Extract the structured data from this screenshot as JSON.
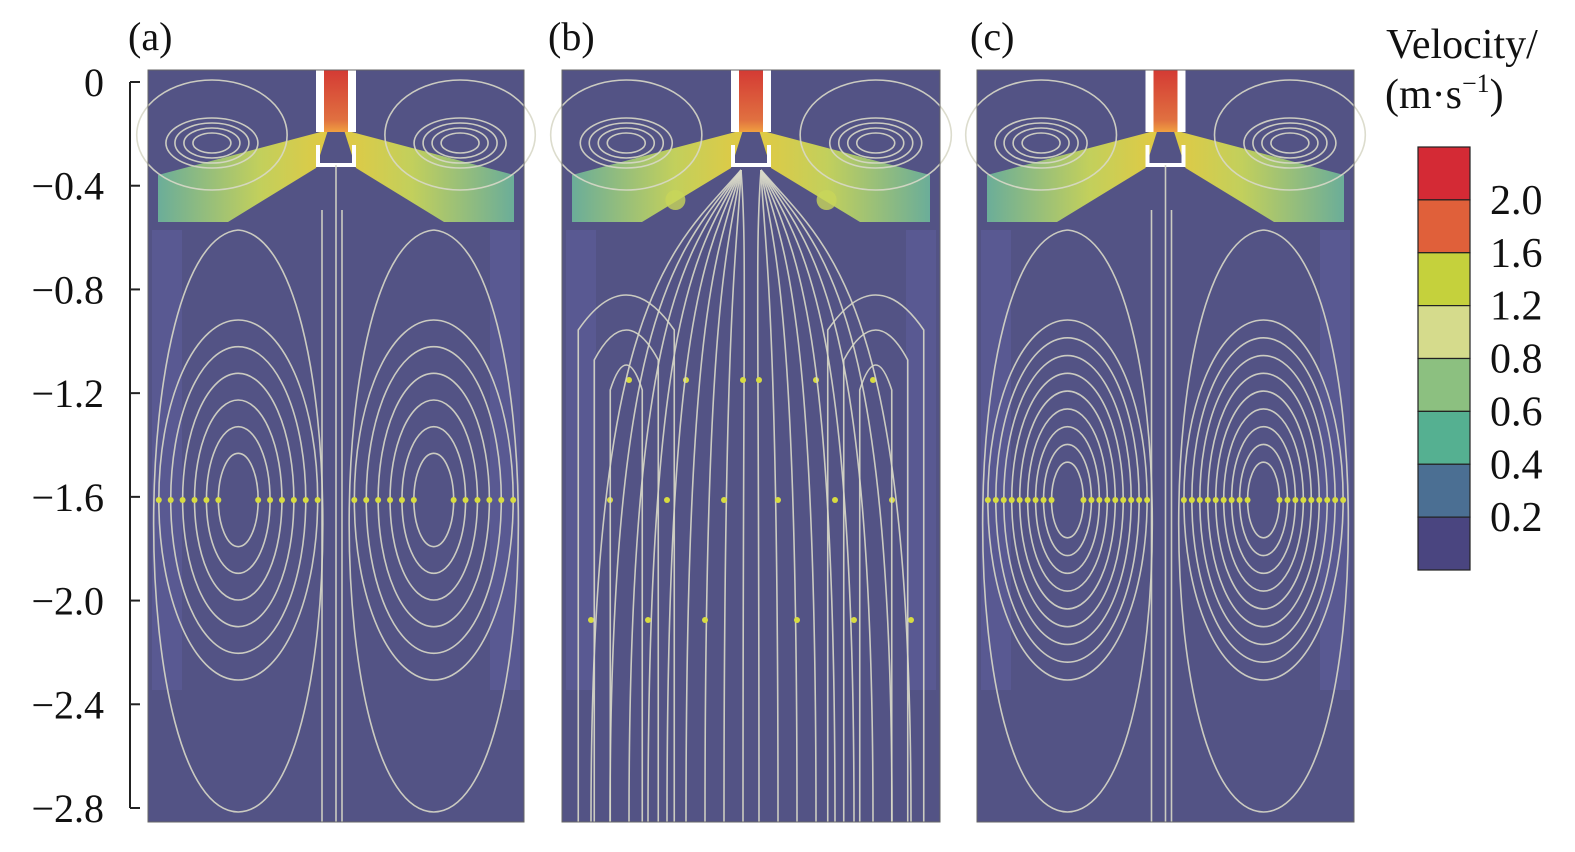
{
  "panels": [
    {
      "label": "(a)",
      "pattern": "two-large-vortices"
    },
    {
      "label": "(b)",
      "pattern": "through-flow"
    },
    {
      "label": "(c)",
      "pattern": "two-large-vortices-dense"
    }
  ],
  "y_axis": {
    "ticks": [
      "0",
      "−0.4",
      "−0.8",
      "−1.2",
      "−1.6",
      "−2.0",
      "−2.4",
      "−2.8"
    ],
    "range": [
      -2.8,
      0
    ]
  },
  "colorbar": {
    "title_line1": "Velocity/",
    "title_line2": "(m·s",
    "title_sup": "−1",
    "title_close": ")",
    "labels": [
      "2.0",
      "1.6",
      "1.2",
      "0.8",
      "0.6",
      "0.4",
      "0.2"
    ],
    "colors": [
      "#d42a35",
      "#e0603a",
      "#c5d13c",
      "#d5db8c",
      "#8cc080",
      "#55b091",
      "#4b6f93",
      "#4a4580"
    ]
  },
  "colors": {
    "background_field": "#535385",
    "streamline": "#d8d8c8",
    "arrow": "#d8dc40",
    "nozzle": "#d84a3a"
  }
}
